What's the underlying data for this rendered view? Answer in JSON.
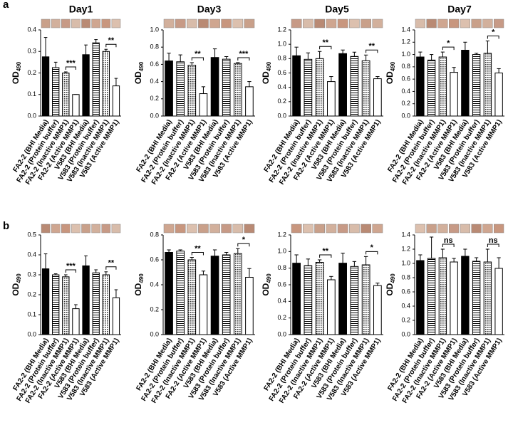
{
  "panel_labels": [
    "a",
    "b"
  ],
  "bar_patterns": [
    "solid",
    "hlines",
    "dots",
    "white"
  ],
  "chart_data": [
    {
      "type": "bar",
      "title": "Day1",
      "ylabel": "OD",
      "ylabel_subscript": "490",
      "categories": [
        "FA2-2 (BHI Media)",
        "FA2-2 (Protein buffer)",
        "FA2-2 (Inactive MMP1)",
        "FA2-2 (Active MMP1)",
        "V583 (BHI Media)",
        "V583 (Protein buffer)",
        "V583 (Inactive MMP1)",
        "V583 (Active MMP1)"
      ],
      "values": [
        0.275,
        0.225,
        0.2,
        0.1,
        0.285,
        0.34,
        0.3,
        0.14
      ],
      "errors": [
        0.09,
        0.025,
        0.005,
        0,
        0.045,
        0.015,
        0.01,
        0.035
      ],
      "ylim": [
        0,
        0.4
      ],
      "yticks": [
        {
          "value": 0,
          "label": "0.0"
        },
        0.1,
        0.2,
        0.3,
        0.4
      ],
      "brackets": [
        {
          "from": 2,
          "to": 3,
          "label": "***"
        },
        {
          "from": 6,
          "to": 7,
          "label": "**"
        }
      ]
    },
    {
      "type": "bar",
      "title": "Day3",
      "ylabel": "OD",
      "ylabel_subscript": "490",
      "categories": [
        "FA2-2 (BHI Media)",
        "FA2-2 (Protein buffer)",
        "FA2-2 (Inactive MMP1)",
        "FA2-2 (Active MMP1)",
        "V583 (BHI Media)",
        "V583 (Protein buffer)",
        "V583 (Inactive MMP1)",
        "V583 (Active MMP1)"
      ],
      "values": [
        0.64,
        0.63,
        0.59,
        0.26,
        0.68,
        0.66,
        0.61,
        0.34
      ],
      "errors": [
        0.09,
        0.08,
        0.03,
        0.08,
        0.1,
        0.03,
        0.01,
        0.06
      ],
      "ylim": [
        0,
        1.0
      ],
      "yticks": [
        {
          "value": 0,
          "label": "0.0"
        },
        0.2,
        0.4,
        0.6,
        0.8,
        {
          "value": 1.0,
          "label": "1.0"
        }
      ],
      "brackets": [
        {
          "from": 2,
          "to": 3,
          "label": "**"
        },
        {
          "from": 6,
          "to": 7,
          "label": "***"
        }
      ]
    },
    {
      "type": "bar",
      "title": "Day5",
      "ylabel": "OD",
      "ylabel_subscript": "490",
      "categories": [
        "FA2-2 (BHI Media)",
        "FA2-2 (Protein buffer)",
        "FA2-2 (Inactive MMP1)",
        "FA2-2 (Active MMP1)",
        "V583 (BHI Media)",
        "V583 (Protein buffer)",
        "V583 (Inactive MMP1)",
        "V583 (Active MMP1)"
      ],
      "values": [
        0.84,
        0.79,
        0.8,
        0.48,
        0.87,
        0.83,
        0.77,
        0.52
      ],
      "errors": [
        0.12,
        0.09,
        0.1,
        0.07,
        0.05,
        0.06,
        0.08,
        0.03
      ],
      "ylim": [
        0,
        1.2
      ],
      "yticks": [
        {
          "value": 0,
          "label": "0.0"
        },
        0.2,
        0.4,
        0.6,
        0.8,
        {
          "value": 1.0,
          "label": "1.0"
        },
        1.2
      ],
      "brackets": [
        {
          "from": 2,
          "to": 3,
          "label": "**"
        },
        {
          "from": 6,
          "to": 7,
          "label": "**"
        }
      ]
    },
    {
      "type": "bar",
      "title": "Day7",
      "ylabel": "OD",
      "ylabel_subscript": "490",
      "categories": [
        "FA2-2 (BHI Media)",
        "FA2-2 (Protein buffer)",
        "FA2-2 (Inactive MMP1)",
        "FA2-2 (Active MMP1)",
        "V583 (BHI Media)",
        "V583 (Protein buffer)",
        "V583 (Inactive MMP1)",
        "V583 (Active MMP1)"
      ],
      "values": [
        0.96,
        0.91,
        0.96,
        0.71,
        1.07,
        1.0,
        1.02,
        0.7
      ],
      "errors": [
        0.08,
        0.09,
        0.08,
        0.08,
        0.13,
        0.02,
        0.2,
        0.07
      ],
      "ylim": [
        0,
        1.4
      ],
      "yticks": [
        {
          "value": 0,
          "label": "0.0"
        },
        0.2,
        0.4,
        0.6,
        0.8,
        {
          "value": 1.0,
          "label": "1.0"
        },
        1.2,
        1.4
      ],
      "brackets": [
        {
          "from": 2,
          "to": 3,
          "label": "*"
        },
        {
          "from": 6,
          "to": 7,
          "label": "*"
        }
      ]
    },
    {
      "type": "bar",
      "ylabel": "OD",
      "ylabel_subscript": "490",
      "categories": [
        "FA2-2 (BHI Media)",
        "FA2-2 (Protein buffer)",
        "FA2-2 (Inactive MMP1)",
        "FA2-2 (Active MMP1)",
        "V583 (BHI Media)",
        "V583 (Protein buffer)",
        "V583 (Inactive MMP1)",
        "V583 (Active MMP1)"
      ],
      "values": [
        0.33,
        0.3,
        0.29,
        0.13,
        0.345,
        0.31,
        0.3,
        0.185
      ],
      "errors": [
        0.075,
        0.005,
        0.01,
        0.02,
        0.05,
        0.015,
        0.015,
        0.04
      ],
      "ylim": [
        0,
        0.5
      ],
      "yticks": [
        {
          "value": 0,
          "label": "0.0"
        },
        0.1,
        0.2,
        0.3,
        0.4,
        0.5
      ],
      "brackets": [
        {
          "from": 2,
          "to": 3,
          "label": "***"
        },
        {
          "from": 6,
          "to": 7,
          "label": "**"
        }
      ]
    },
    {
      "type": "bar",
      "ylabel": "OD",
      "ylabel_subscript": "490",
      "categories": [
        "FA2-2 (BHI Media)",
        "FA2-2 (Protein buffer)",
        "FA2-2 (Inactive MMP1)",
        "FA2-2 (Active MMP1)",
        "V583 (BHI Media)",
        "V583 (Protein buffer)",
        "V583 (Inactive MMP1)",
        "V583 (Active MMP1)"
      ],
      "values": [
        0.66,
        0.67,
        0.6,
        0.48,
        0.63,
        0.64,
        0.65,
        0.46
      ],
      "errors": [
        0.02,
        0.01,
        0.02,
        0.03,
        0.05,
        0.02,
        0.04,
        0.07
      ],
      "ylim": [
        0,
        0.8
      ],
      "yticks": [
        {
          "value": 0,
          "label": "0.0"
        },
        0.2,
        0.4,
        0.6,
        0.8
      ],
      "brackets": [
        {
          "from": 2,
          "to": 3,
          "label": "**"
        },
        {
          "from": 6,
          "to": 7,
          "label": "*"
        }
      ]
    },
    {
      "type": "bar",
      "ylabel": "OD",
      "ylabel_subscript": "490",
      "categories": [
        "FA2-2 (BHI Media)",
        "FA2-2 (Protein buffer)",
        "FA2-2 (Inactive MMP1)",
        "FA2-2 (Active MMP1)",
        "V583 (BHI Media)",
        "V583 (Protein buffer)",
        "V583 (Inactive MMP1)",
        "V583 (Active MMP1)"
      ],
      "values": [
        0.86,
        0.83,
        0.87,
        0.66,
        0.86,
        0.82,
        0.84,
        0.59
      ],
      "errors": [
        0.1,
        0.08,
        0.03,
        0.04,
        0.12,
        0.06,
        0.1,
        0.03
      ],
      "ylim": [
        0,
        1.2
      ],
      "yticks": [
        {
          "value": 0,
          "label": "0.0"
        },
        0.2,
        0.4,
        0.6,
        0.8,
        {
          "value": 1.0,
          "label": "1.0"
        },
        1.2
      ],
      "brackets": [
        {
          "from": 2,
          "to": 3,
          "label": "**"
        },
        {
          "from": 6,
          "to": 7,
          "label": "*"
        }
      ]
    },
    {
      "type": "bar",
      "ylabel": "OD",
      "ylabel_subscript": "490",
      "categories": [
        "FA2-2 (BHI Media)",
        "FA2-2 (Protein buffer)",
        "FA2-2 (Inactive MMP1)",
        "FA2-2 (Active MMP1)",
        "V583 (BHI Media)",
        "V583 (Protein buffer)",
        "V583 (Inactive MMP1)",
        "V583 (Active MMP1)"
      ],
      "values": [
        1.04,
        1.07,
        1.08,
        1.02,
        1.1,
        1.03,
        1.02,
        0.93
      ],
      "errors": [
        0.08,
        0.3,
        0.12,
        0.05,
        0.1,
        0.05,
        0.18,
        0.15
      ],
      "ylim": [
        0,
        1.4
      ],
      "yticks": [
        {
          "value": 0,
          "label": "0.0"
        },
        0.2,
        0.4,
        0.6,
        0.8,
        {
          "value": 1.0,
          "label": "1.0"
        },
        1.2,
        1.4
      ],
      "brackets": [
        {
          "from": 2,
          "to": 3,
          "label": "ns"
        },
        {
          "from": 6,
          "to": 7,
          "label": "ns"
        }
      ]
    }
  ]
}
